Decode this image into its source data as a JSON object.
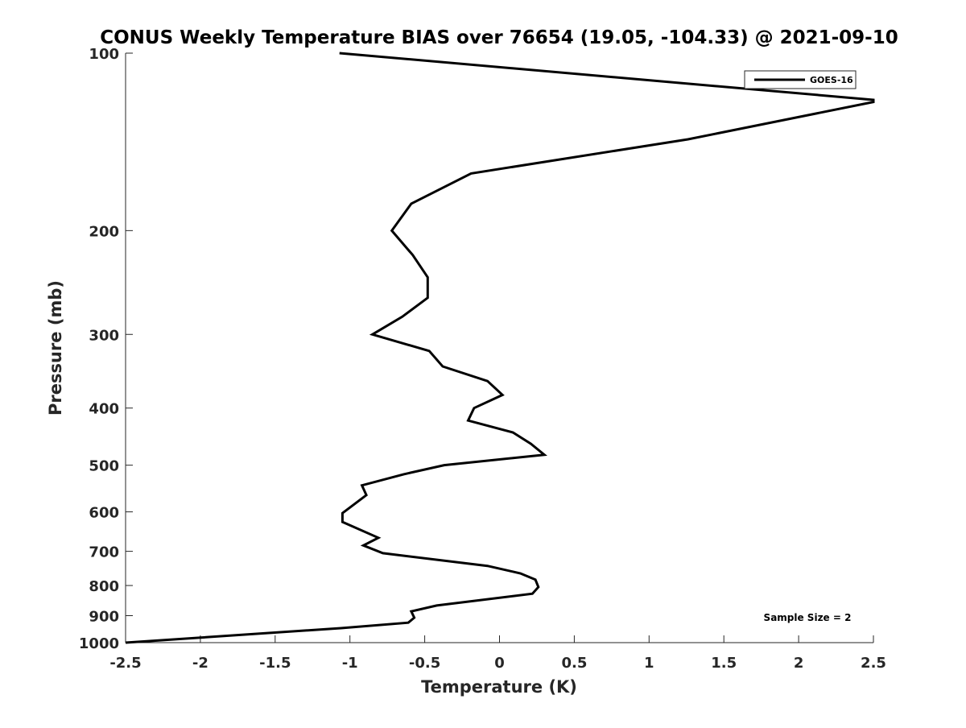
{
  "chart_data": {
    "type": "line",
    "title": "CONUS Weekly Temperature BIAS over 76654 (19.05, -104.33) @ 2021-09-10",
    "xlabel": "Temperature (K)",
    "ylabel": "Pressure (mb)",
    "xlim": [
      -2.5,
      2.5
    ],
    "ylim": [
      100,
      1000
    ],
    "yscale": "log",
    "yreversed": true,
    "grid": false,
    "x_ticks": [
      "-2.5",
      "-2",
      "-1.5",
      "-1",
      "-0.5",
      "0",
      "0.5",
      "1",
      "1.5",
      "2",
      "2.5"
    ],
    "y_ticks": [
      "100",
      "200",
      "300",
      "400",
      "500",
      "600",
      "700",
      "800",
      "900",
      "1000"
    ],
    "legend": {
      "placement": "top-right",
      "entries": [
        "GOES-16"
      ]
    },
    "annotation": "Sample Size = 2",
    "series": [
      {
        "name": "GOES-16",
        "color": "#000000",
        "points": [
          [
            -1.07,
            100
          ],
          [
            2.5,
            120
          ],
          [
            2.5,
            121
          ],
          [
            1.26,
            140
          ],
          [
            -0.19,
            160
          ],
          [
            -0.59,
            180
          ],
          [
            -0.72,
            200
          ],
          [
            -0.58,
            220
          ],
          [
            -0.48,
            240
          ],
          [
            -0.48,
            260
          ],
          [
            -0.65,
            280
          ],
          [
            -0.85,
            300
          ],
          [
            -0.47,
            320
          ],
          [
            -0.38,
            340
          ],
          [
            -0.08,
            360
          ],
          [
            0.02,
            380
          ],
          [
            -0.17,
            400
          ],
          [
            -0.21,
            420
          ],
          [
            0.09,
            440
          ],
          [
            0.21,
            460
          ],
          [
            0.3,
            480
          ],
          [
            -0.37,
            500
          ],
          [
            -0.64,
            518
          ],
          [
            -0.92,
            541
          ],
          [
            -0.89,
            562
          ],
          [
            -1.05,
            603
          ],
          [
            -1.05,
            624
          ],
          [
            -0.81,
            664
          ],
          [
            -0.91,
            684
          ],
          [
            -0.78,
            705
          ],
          [
            -0.08,
            741
          ],
          [
            0.14,
            763
          ],
          [
            0.24,
            782
          ],
          [
            0.26,
            805
          ],
          [
            0.22,
            826
          ],
          [
            -0.42,
            865
          ],
          [
            -0.59,
            885
          ],
          [
            -0.57,
            907
          ],
          [
            -0.61,
            925
          ],
          [
            -1.06,
            945
          ],
          [
            -2.5,
            1000
          ]
        ]
      }
    ]
  }
}
